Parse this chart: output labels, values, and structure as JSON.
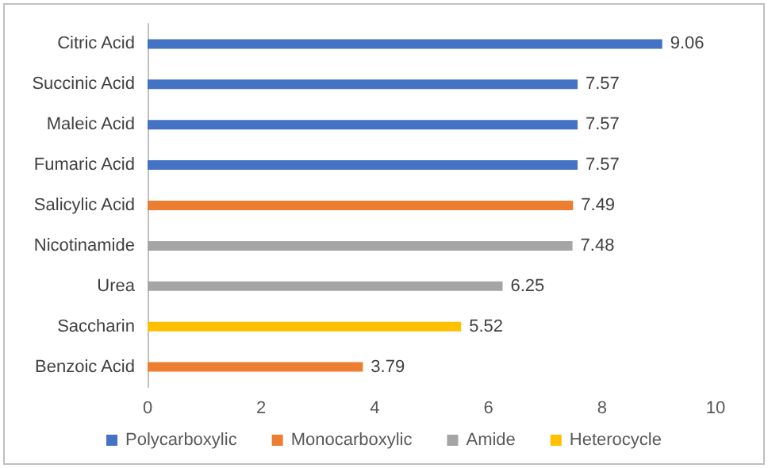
{
  "chart_data": {
    "type": "bar",
    "orientation": "horizontal",
    "stacked": true,
    "data_labels": true,
    "grid": false,
    "legend": "bottom",
    "categories": [
      "Citric Acid",
      "Succinic Acid",
      "Maleic Acid",
      "Fumaric Acid",
      "Salicylic Acid",
      "Nicotinamide",
      "Urea",
      "Saccharin",
      "Benzoic Acid"
    ],
    "xlim": [
      0,
      10
    ],
    "xticks": [
      0,
      2,
      4,
      6,
      8,
      10
    ],
    "series": [
      {
        "name": "Polycarboxylic",
        "color": "#4472c4",
        "values": [
          9.06,
          7.57,
          7.57,
          7.57,
          null,
          null,
          null,
          null,
          null
        ]
      },
      {
        "name": "Monocarboxylic",
        "color": "#ed7d31",
        "values": [
          null,
          null,
          null,
          null,
          7.49,
          null,
          null,
          null,
          3.79
        ]
      },
      {
        "name": "Amide",
        "color": "#a5a5a5",
        "values": [
          null,
          null,
          null,
          null,
          null,
          7.48,
          6.25,
          null,
          null
        ]
      },
      {
        "name": "Heterocycle",
        "color": "#ffc000",
        "values": [
          null,
          null,
          null,
          null,
          null,
          null,
          null,
          5.52,
          null
        ]
      }
    ]
  }
}
